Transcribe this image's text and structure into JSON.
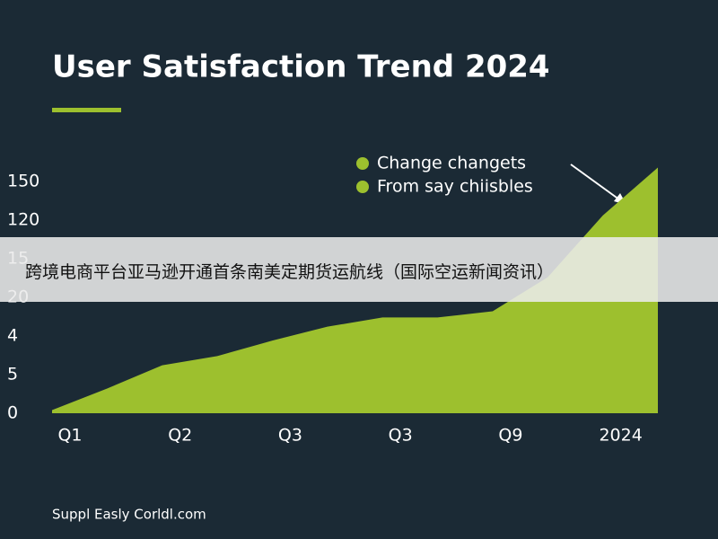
{
  "chart_data": {
    "type": "area",
    "title": "User Satisfaction Trend 2024",
    "categories": [
      "Q1",
      null,
      "Q2",
      null,
      "Q3",
      null,
      "Q3",
      null,
      "Q9",
      null,
      "2024",
      null
    ],
    "series": [
      {
        "name": null,
        "color": "#9dc02e",
        "values": [
          2,
          16,
          31,
          37,
          47,
          56,
          62,
          62,
          66,
          88,
          128,
          159
        ]
      }
    ],
    "legend": [
      "Change changets",
      "From say chiisbles"
    ],
    "legend_color": "#9dc02e",
    "ylim": [
      0,
      160
    ],
    "yticks": [
      0,
      {
        "value": 25,
        "label": "5"
      },
      {
        "value": 50,
        "label": "4"
      },
      {
        "value": 75,
        "label": "20"
      },
      {
        "value": 100,
        "label": "15"
      },
      {
        "value": 125,
        "label": "120"
      },
      150
    ],
    "footer": "Suppl Easly Corldl.com"
  },
  "banner": "跨境电商平台亚马逊开通首条南美定期货运航线（国际空运新闻资讯）"
}
